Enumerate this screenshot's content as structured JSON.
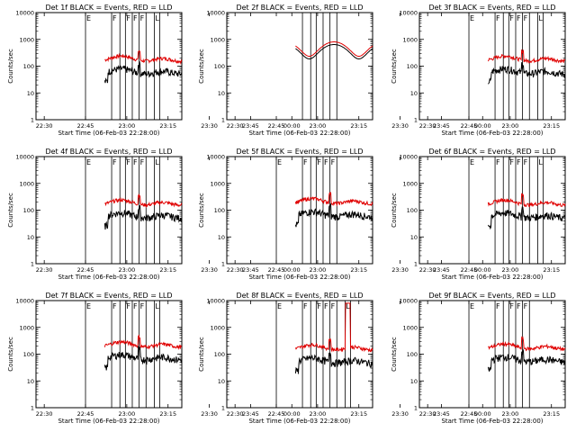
{
  "figure": {
    "start_time_label": "Start Time (06-Feb-03 22:28:00)",
    "ylabel": "Counts/sec",
    "black_color": "#000000",
    "red_color": "#e00000"
  },
  "chart_data": {
    "type": "line",
    "y_scale": "log",
    "ylim": [
      1,
      10000
    ],
    "y_ticks": [
      "1",
      "10",
      "100",
      "1000",
      "10000"
    ],
    "x_range_minutes": [
      -3,
      50
    ],
    "x_ticks": [
      "22:30",
      "22:45",
      "23:00",
      "23:15",
      "23:30",
      "23:45",
      "00:00"
    ],
    "data_window": [
      22,
      50
    ],
    "panels": [
      {
        "title": "Det 1f BLACK = Events, RED = LLD",
        "red_level": 150,
        "black_level": 50,
        "flags": [
          "E",
          "F",
          "F",
          "F",
          "F",
          "L"
        ],
        "lines": [
          15,
          24.5,
          27.5,
          29.5,
          32,
          34.5,
          37,
          40,
          42
        ]
      },
      {
        "title": "Det 2f BLACK = Events, RED = LLD",
        "red_level": 520,
        "black_level": 450,
        "flags": [],
        "lines": [
          24.5,
          27.5,
          29.5,
          32,
          34.5,
          37
        ],
        "smooth": true
      },
      {
        "title": "Det 3f BLACK = Events, RED = LLD",
        "red_level": 150,
        "black_level": 50,
        "flags": [
          "E",
          "F",
          "F",
          "F",
          "F",
          "L"
        ],
        "lines": [
          15,
          24.5,
          27.5,
          29.5,
          32,
          34.5,
          37,
          40,
          42
        ]
      },
      {
        "title": "Det 4f BLACK = Events, RED = LLD",
        "red_level": 150,
        "black_level": 50,
        "flags": [
          "E",
          "F",
          "F",
          "F",
          "F",
          "L"
        ],
        "lines": [
          15,
          24.5,
          27.5,
          29.5,
          32,
          34.5,
          37,
          40,
          42
        ]
      },
      {
        "title": "Det 5f BLACK = Events, RED = LLD",
        "red_level": 170,
        "black_level": 55,
        "flags": [
          "E",
          "F",
          "F",
          "F",
          "F"
        ],
        "lines": [
          15,
          24.5,
          27.5,
          29.5,
          32,
          34.5,
          37
        ]
      },
      {
        "title": "Det 6f BLACK = Events, RED = LLD",
        "red_level": 150,
        "black_level": 50,
        "flags": [
          "E",
          "F",
          "F",
          "F",
          "F",
          "L"
        ],
        "lines": [
          15,
          24.5,
          27.5,
          29.5,
          32,
          34.5,
          37,
          40,
          42
        ]
      },
      {
        "title": "Det 7f BLACK = Events, RED = LLD",
        "red_level": 180,
        "black_level": 60,
        "flags": [
          "E",
          "F",
          "F",
          "F",
          "F",
          "L"
        ],
        "lines": [
          15,
          24.5,
          27.5,
          29.5,
          32,
          34.5,
          37,
          40,
          42
        ]
      },
      {
        "title": "Det 8f BLACK = Events, RED = LLD",
        "red_level": 140,
        "black_level": 45,
        "flags": [
          "E",
          "F",
          "F",
          "F",
          "F",
          "L"
        ],
        "lines": [
          15,
          24.5,
          27.5,
          29.5,
          32,
          34.5,
          37,
          40,
          42
        ],
        "spike": true
      },
      {
        "title": "Det 9f BLACK = Events, RED = LLD",
        "red_level": 150,
        "black_level": 50,
        "flags": [
          "E",
          "F",
          "F",
          "F",
          "F"
        ],
        "lines": [
          15,
          24.5,
          27.5,
          29.5,
          32,
          34.5,
          37
        ]
      }
    ]
  }
}
